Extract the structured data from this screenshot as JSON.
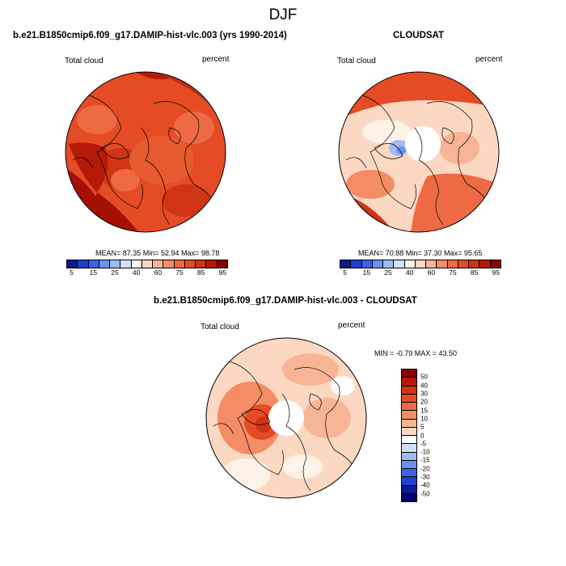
{
  "title": "DJF",
  "panels": [
    {
      "title": "b.e21.B1850cmip6.f09_g17.DAMIP-hist-vlc.003 (yrs 1990-2014)",
      "left_label": "Total cloud",
      "right_label": "percent",
      "stats": "MEAN=  87.35  Min=  52.94  Max=  98.78"
    },
    {
      "title": "CLOUDSAT",
      "left_label": "Total cloud",
      "right_label": "percent",
      "stats": "MEAN=  70.88  Min=  37.30  Max=  95.65"
    },
    {
      "title": "b.e21.B1850cmip6.f09_g17.DAMIP-hist-vlc.003 - CLOUDSAT",
      "left_label": "Total cloud",
      "right_label": "percent",
      "stats": "MIN =  -0.79 MAX =  43.50"
    }
  ],
  "colorbar_abs": {
    "ticks": [
      "5",
      "15",
      "25",
      "40",
      "60",
      "75",
      "85",
      "95"
    ],
    "colors": [
      "#0a1d8c",
      "#1f3fcc",
      "#3a64e6",
      "#6a92f0",
      "#9ebcf4",
      "#cfe0f8",
      "#fff2e8",
      "#fcd8c2",
      "#f8b596",
      "#f48c66",
      "#ee6a44",
      "#e54b24",
      "#d03414",
      "#b51a08",
      "#8a0000"
    ]
  },
  "colorbar_diff": {
    "ticks": [
      "50",
      "40",
      "30",
      "20",
      "15",
      "10",
      "5",
      "0",
      "-5",
      "-10",
      "-15",
      "-20",
      "-30",
      "-40",
      "-50"
    ],
    "colors": [
      "#8a0000",
      "#b51a08",
      "#d03414",
      "#e54b24",
      "#ee6a44",
      "#f48c66",
      "#f8b596",
      "#fcd8c2",
      "#ffffff",
      "#cfe0f8",
      "#9ebcf4",
      "#6a92f0",
      "#3a64e6",
      "#1f3fcc",
      "#0a1d8c",
      "#000070"
    ]
  }
}
